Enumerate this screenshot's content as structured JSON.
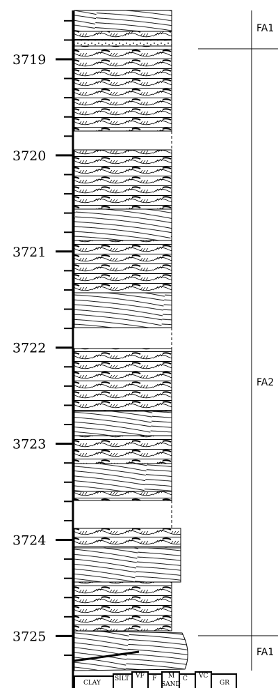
{
  "depth_labels": [
    "3719",
    "3720",
    "3721",
    "3722",
    "3723",
    "3724",
    "3725"
  ],
  "facies": [
    {
      "label": "FA1"
    },
    {
      "label": "FA2"
    },
    {
      "label": "FA1"
    }
  ],
  "grain_scale": {
    "labels": [
      "CLAY",
      "SILT",
      "VF",
      "F",
      "M",
      "C",
      "VC",
      "GR"
    ],
    "group": "SAND"
  }
}
